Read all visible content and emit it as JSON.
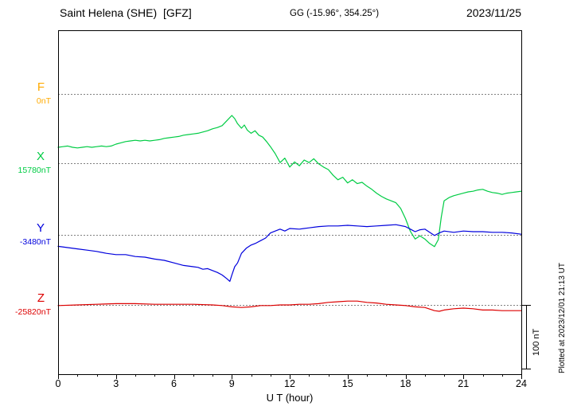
{
  "header": {
    "title": "Saint Helena (SHE)  [GFZ]",
    "gg": "GG (-15.96°, 354.25°)",
    "date": "2023/11/25"
  },
  "plot": {
    "xlabel": "U T (hour)",
    "x_ticks": [
      0,
      3,
      6,
      9,
      12,
      15,
      18,
      21,
      24
    ],
    "scale_bar": {
      "label": "100 nT",
      "nT": 100
    },
    "plotted_at": "Plotted at 2023/12/01 21:13 UT"
  },
  "chart_data": {
    "type": "line",
    "title": "Saint Helena (SHE) [GFZ] magnetogram 2023/11/25",
    "xlabel": "U T (hour)",
    "x_range": [
      0,
      24
    ],
    "x_ticks": [
      0,
      3,
      6,
      9,
      12,
      15,
      18,
      21,
      24
    ],
    "grid": "dotted horizontal baselines per component",
    "legend_position": "left margin component labels",
    "value_units": "nT offset from component baseline",
    "series": [
      {
        "name": "F",
        "color": "#ffaa00",
        "baseline_label": "0nT",
        "baseline_value": 0,
        "points": []
      },
      {
        "name": "X",
        "color": "#00cc44",
        "baseline_label": "15780nT",
        "baseline_value": 15780,
        "points": [
          [
            0,
            25
          ],
          [
            0.25,
            26
          ],
          [
            0.5,
            27
          ],
          [
            0.75,
            25
          ],
          [
            1,
            24
          ],
          [
            1.25,
            25
          ],
          [
            1.5,
            26
          ],
          [
            1.75,
            25
          ],
          [
            2,
            26
          ],
          [
            2.25,
            27
          ],
          [
            2.5,
            26
          ],
          [
            2.75,
            27
          ],
          [
            3,
            30
          ],
          [
            3.25,
            32
          ],
          [
            3.5,
            34
          ],
          [
            3.75,
            35
          ],
          [
            4,
            36
          ],
          [
            4.25,
            35
          ],
          [
            4.5,
            36
          ],
          [
            4.75,
            35
          ],
          [
            5,
            36
          ],
          [
            5.25,
            37
          ],
          [
            5.5,
            39
          ],
          [
            5.75,
            40
          ],
          [
            6,
            41
          ],
          [
            6.25,
            42
          ],
          [
            6.5,
            44
          ],
          [
            6.75,
            45
          ],
          [
            7,
            46
          ],
          [
            7.25,
            47
          ],
          [
            7.5,
            49
          ],
          [
            7.75,
            51
          ],
          [
            8,
            54
          ],
          [
            8.25,
            56
          ],
          [
            8.5,
            59
          ],
          [
            8.75,
            67
          ],
          [
            9,
            75
          ],
          [
            9.15,
            70
          ],
          [
            9.3,
            62
          ],
          [
            9.5,
            55
          ],
          [
            9.65,
            60
          ],
          [
            9.8,
            52
          ],
          [
            10,
            47
          ],
          [
            10.2,
            51
          ],
          [
            10.4,
            44
          ],
          [
            10.6,
            41
          ],
          [
            10.8,
            34
          ],
          [
            11,
            26
          ],
          [
            11.25,
            15
          ],
          [
            11.5,
            1
          ],
          [
            11.75,
            8
          ],
          [
            12,
            -6
          ],
          [
            12.25,
            2
          ],
          [
            12.5,
            -4
          ],
          [
            12.75,
            5
          ],
          [
            13,
            1
          ],
          [
            13.25,
            7
          ],
          [
            13.5,
            -1
          ],
          [
            13.75,
            -6
          ],
          [
            14,
            -10
          ],
          [
            14.25,
            -19
          ],
          [
            14.5,
            -26
          ],
          [
            14.75,
            -22
          ],
          [
            15,
            -31
          ],
          [
            15.25,
            -26
          ],
          [
            15.5,
            -32
          ],
          [
            15.75,
            -30
          ],
          [
            16,
            -36
          ],
          [
            16.25,
            -41
          ],
          [
            16.5,
            -47
          ],
          [
            16.75,
            -52
          ],
          [
            17,
            -56
          ],
          [
            17.25,
            -59
          ],
          [
            17.5,
            -62
          ],
          [
            17.75,
            -71
          ],
          [
            18,
            -87
          ],
          [
            18.25,
            -107
          ],
          [
            18.5,
            -119
          ],
          [
            18.75,
            -114
          ],
          [
            19,
            -119
          ],
          [
            19.25,
            -126
          ],
          [
            19.5,
            -131
          ],
          [
            19.7,
            -120
          ],
          [
            19.85,
            -85
          ],
          [
            20,
            -59
          ],
          [
            20.25,
            -54
          ],
          [
            20.5,
            -51
          ],
          [
            20.75,
            -49
          ],
          [
            21,
            -47
          ],
          [
            21.25,
            -45
          ],
          [
            21.5,
            -44
          ],
          [
            21.75,
            -42
          ],
          [
            22,
            -41
          ],
          [
            22.25,
            -44
          ],
          [
            22.5,
            -46
          ],
          [
            22.75,
            -47
          ],
          [
            23,
            -49
          ],
          [
            23.25,
            -47
          ],
          [
            23.5,
            -46
          ],
          [
            23.75,
            -45
          ],
          [
            24,
            -44
          ]
        ]
      },
      {
        "name": "Y",
        "color": "#0000dd",
        "baseline_label": "-3480nT",
        "baseline_value": -3480,
        "points": [
          [
            0,
            -18
          ],
          [
            0.5,
            -20
          ],
          [
            1,
            -22
          ],
          [
            1.5,
            -24
          ],
          [
            2,
            -26
          ],
          [
            2.5,
            -29
          ],
          [
            3,
            -31
          ],
          [
            3.5,
            -31
          ],
          [
            4,
            -34
          ],
          [
            4.5,
            -35
          ],
          [
            5,
            -38
          ],
          [
            5.5,
            -40
          ],
          [
            6,
            -44
          ],
          [
            6.5,
            -48
          ],
          [
            7,
            -50
          ],
          [
            7.25,
            -51
          ],
          [
            7.5,
            -54
          ],
          [
            7.75,
            -53
          ],
          [
            8,
            -56
          ],
          [
            8.25,
            -59
          ],
          [
            8.5,
            -63
          ],
          [
            8.75,
            -69
          ],
          [
            8.9,
            -73
          ],
          [
            9,
            -63
          ],
          [
            9.15,
            -50
          ],
          [
            9.3,
            -44
          ],
          [
            9.5,
            -29
          ],
          [
            9.75,
            -21
          ],
          [
            10,
            -16
          ],
          [
            10.25,
            -13
          ],
          [
            10.5,
            -9
          ],
          [
            10.75,
            -5
          ],
          [
            11,
            3
          ],
          [
            11.25,
            6
          ],
          [
            11.5,
            9
          ],
          [
            11.75,
            6
          ],
          [
            12,
            10
          ],
          [
            12.5,
            9
          ],
          [
            13,
            11
          ],
          [
            13.5,
            13
          ],
          [
            14,
            14
          ],
          [
            14.5,
            14
          ],
          [
            15,
            15
          ],
          [
            15.5,
            14
          ],
          [
            16,
            13
          ],
          [
            16.5,
            14
          ],
          [
            17,
            15
          ],
          [
            17.5,
            16
          ],
          [
            18,
            13
          ],
          [
            18.25,
            9
          ],
          [
            18.5,
            5
          ],
          [
            18.75,
            8
          ],
          [
            19,
            9
          ],
          [
            19.25,
            4
          ],
          [
            19.5,
            -1
          ],
          [
            19.75,
            3
          ],
          [
            20,
            6
          ],
          [
            20.5,
            4
          ],
          [
            21,
            6
          ],
          [
            21.5,
            5
          ],
          [
            22,
            5
          ],
          [
            22.5,
            4
          ],
          [
            23,
            4
          ],
          [
            23.5,
            3
          ],
          [
            24,
            1
          ]
        ]
      },
      {
        "name": "Z",
        "color": "#dd0000",
        "baseline_label": "-25820nT",
        "baseline_value": -25820,
        "points": [
          [
            0,
            -1
          ],
          [
            1,
            0
          ],
          [
            2,
            1
          ],
          [
            3,
            2
          ],
          [
            4,
            2
          ],
          [
            5,
            1
          ],
          [
            6,
            1
          ],
          [
            7,
            1
          ],
          [
            8,
            0
          ],
          [
            8.5,
            -1
          ],
          [
            9,
            -3
          ],
          [
            9.5,
            -4
          ],
          [
            10,
            -3
          ],
          [
            10.5,
            -1
          ],
          [
            11,
            -1
          ],
          [
            11.5,
            0
          ],
          [
            12,
            0
          ],
          [
            12.5,
            1
          ],
          [
            13,
            1
          ],
          [
            13.5,
            2
          ],
          [
            14,
            4
          ],
          [
            14.5,
            5
          ],
          [
            15,
            6
          ],
          [
            15.5,
            6
          ],
          [
            16,
            4
          ],
          [
            16.5,
            3
          ],
          [
            17,
            1
          ],
          [
            17.5,
            0
          ],
          [
            18,
            -1
          ],
          [
            18.5,
            -3
          ],
          [
            19,
            -4
          ],
          [
            19.5,
            -9
          ],
          [
            19.75,
            -10
          ],
          [
            20,
            -8
          ],
          [
            20.5,
            -6
          ],
          [
            21,
            -5
          ],
          [
            21.5,
            -6
          ],
          [
            22,
            -8
          ],
          [
            22.5,
            -8
          ],
          [
            23,
            -9
          ],
          [
            23.5,
            -9
          ],
          [
            24,
            -9
          ]
        ]
      }
    ]
  }
}
